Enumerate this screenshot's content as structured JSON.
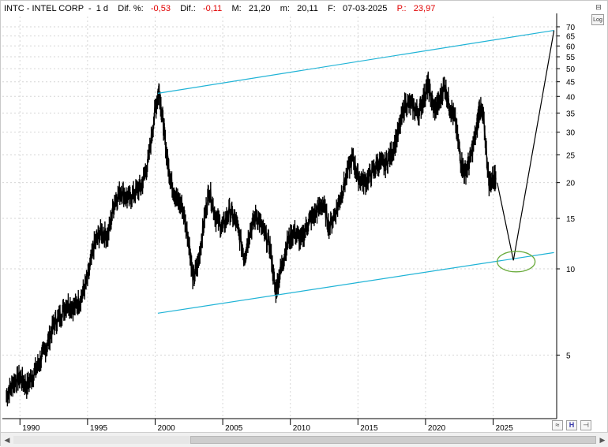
{
  "header": {
    "symbol": "INTC - INTEL CORP",
    "interval": "1 d",
    "dif_pct_label": "Dif. %:",
    "dif_pct_value": "-0,53",
    "dif_label": "Dif.:",
    "dif_value": "-0,11",
    "max_label": "M:",
    "max_value": "21,20",
    "min_label": "m:",
    "min_value": "20,11",
    "date_label": "F:",
    "date_value": "07-03-2025",
    "price_label": "P.:",
    "price_value": "23,97"
  },
  "controls": {
    "log_label": "Log",
    "minimize_glyph": "⊟",
    "tool_buttons": [
      "wave-icon",
      "h-icon",
      "pin-icon"
    ]
  },
  "colors": {
    "price": "#000000",
    "channel": "#1fb3d6",
    "ellipse": "#6aab3c",
    "grid": "#d6d6d6",
    "negative": "#e00000",
    "accent_blue": "#3a3aaa"
  },
  "chart_data": {
    "type": "line",
    "scale": "log",
    "title": "INTC - INTEL CORP",
    "xlabel": "",
    "ylabel": "",
    "xlim": [
      1988.7,
      2029.7
    ],
    "ylim": [
      3.0,
      76
    ],
    "x_ticks": [
      1990,
      1995,
      2000,
      2005,
      2010,
      2015,
      2020,
      2025
    ],
    "x_tick_labels": [
      "1990",
      "1995",
      "2000",
      "2005",
      "2010",
      "2015",
      "2020",
      "2025"
    ],
    "y_ticks": [
      5,
      10,
      15,
      20,
      25,
      30,
      35,
      40,
      45,
      50,
      55,
      60,
      65,
      70
    ],
    "y_tick_labels": [
      "5",
      "10",
      "15",
      "20",
      "25",
      "30",
      "35",
      "40",
      "45",
      "50",
      "55",
      "60",
      "65",
      "70"
    ],
    "grid": true,
    "series": [
      {
        "values": [
          [
            1989.0,
            3.6
          ],
          [
            1989.5,
            4.0
          ],
          [
            1990.0,
            4.2
          ],
          [
            1990.5,
            3.9
          ],
          [
            1991.0,
            4.3
          ],
          [
            1991.5,
            4.8
          ],
          [
            1992.0,
            5.4
          ],
          [
            1992.5,
            6.4
          ],
          [
            1993.0,
            6.9
          ],
          [
            1993.5,
            7.6
          ],
          [
            1994.0,
            7.3
          ],
          [
            1994.5,
            7.9
          ],
          [
            1995.0,
            9.2
          ],
          [
            1995.5,
            12.2
          ],
          [
            1996.0,
            13.5
          ],
          [
            1996.5,
            13.0
          ],
          [
            1997.0,
            17.3
          ],
          [
            1997.5,
            18.8
          ],
          [
            1998.0,
            17.5
          ],
          [
            1998.5,
            18.5
          ],
          [
            1999.0,
            19.5
          ],
          [
            1999.5,
            24.0
          ],
          [
            2000.0,
            36.0
          ],
          [
            2000.3,
            42.0
          ],
          [
            2000.6,
            32.0
          ],
          [
            2000.9,
            24.0
          ],
          [
            2001.2,
            20.0
          ],
          [
            2001.6,
            17.5
          ],
          [
            2002.0,
            16.5
          ],
          [
            2002.5,
            12.5
          ],
          [
            2002.8,
            9.2
          ],
          [
            2003.2,
            10.5
          ],
          [
            2003.6,
            14.5
          ],
          [
            2004.0,
            19.0
          ],
          [
            2004.5,
            15.0
          ],
          [
            2005.0,
            14.0
          ],
          [
            2005.5,
            16.0
          ],
          [
            2006.0,
            14.5
          ],
          [
            2006.6,
            11.0
          ],
          [
            2007.0,
            13.5
          ],
          [
            2007.5,
            15.5
          ],
          [
            2008.0,
            13.5
          ],
          [
            2008.5,
            12.0
          ],
          [
            2008.9,
            8.3
          ],
          [
            2009.3,
            10.0
          ],
          [
            2009.8,
            12.5
          ],
          [
            2010.3,
            13.5
          ],
          [
            2010.8,
            12.5
          ],
          [
            2011.3,
            14.5
          ],
          [
            2011.8,
            15.5
          ],
          [
            2012.4,
            17.0
          ],
          [
            2012.9,
            14.0
          ],
          [
            2013.5,
            16.5
          ],
          [
            2014.0,
            20.0
          ],
          [
            2014.6,
            24.5
          ],
          [
            2015.0,
            21.0
          ],
          [
            2015.5,
            20.0
          ],
          [
            2016.0,
            21.5
          ],
          [
            2016.5,
            23.5
          ],
          [
            2017.0,
            23.0
          ],
          [
            2017.5,
            25.5
          ],
          [
            2018.0,
            30.0
          ],
          [
            2018.5,
            38.0
          ],
          [
            2019.0,
            37.0
          ],
          [
            2019.5,
            35.0
          ],
          [
            2019.9,
            40.0
          ],
          [
            2020.2,
            44.0
          ],
          [
            2020.6,
            36.0
          ],
          [
            2021.0,
            38.0
          ],
          [
            2021.4,
            44.0
          ],
          [
            2021.8,
            37.0
          ],
          [
            2022.2,
            33.0
          ],
          [
            2022.6,
            24.0
          ],
          [
            2022.9,
            21.5
          ],
          [
            2023.3,
            24.0
          ],
          [
            2023.8,
            31.0
          ],
          [
            2024.0,
            37.0
          ],
          [
            2024.3,
            33.0
          ],
          [
            2024.7,
            20.0
          ],
          [
            2025.1,
            21.0
          ],
          [
            2025.2,
            20.5
          ]
        ]
      }
    ],
    "channel_lines": [
      {
        "points": [
          [
            2000.2,
            41.0
          ],
          [
            2029.5,
            68.0
          ]
        ]
      },
      {
        "points": [
          [
            2000.2,
            7.0
          ],
          [
            2029.5,
            11.4
          ]
        ]
      }
    ],
    "projection": {
      "points": [
        [
          2025.3,
          20.0
        ],
        [
          2026.5,
          10.7
        ],
        [
          2029.5,
          68.0
        ]
      ]
    },
    "highlight_ellipse": {
      "center": [
        2026.7,
        10.6
      ]
    }
  }
}
